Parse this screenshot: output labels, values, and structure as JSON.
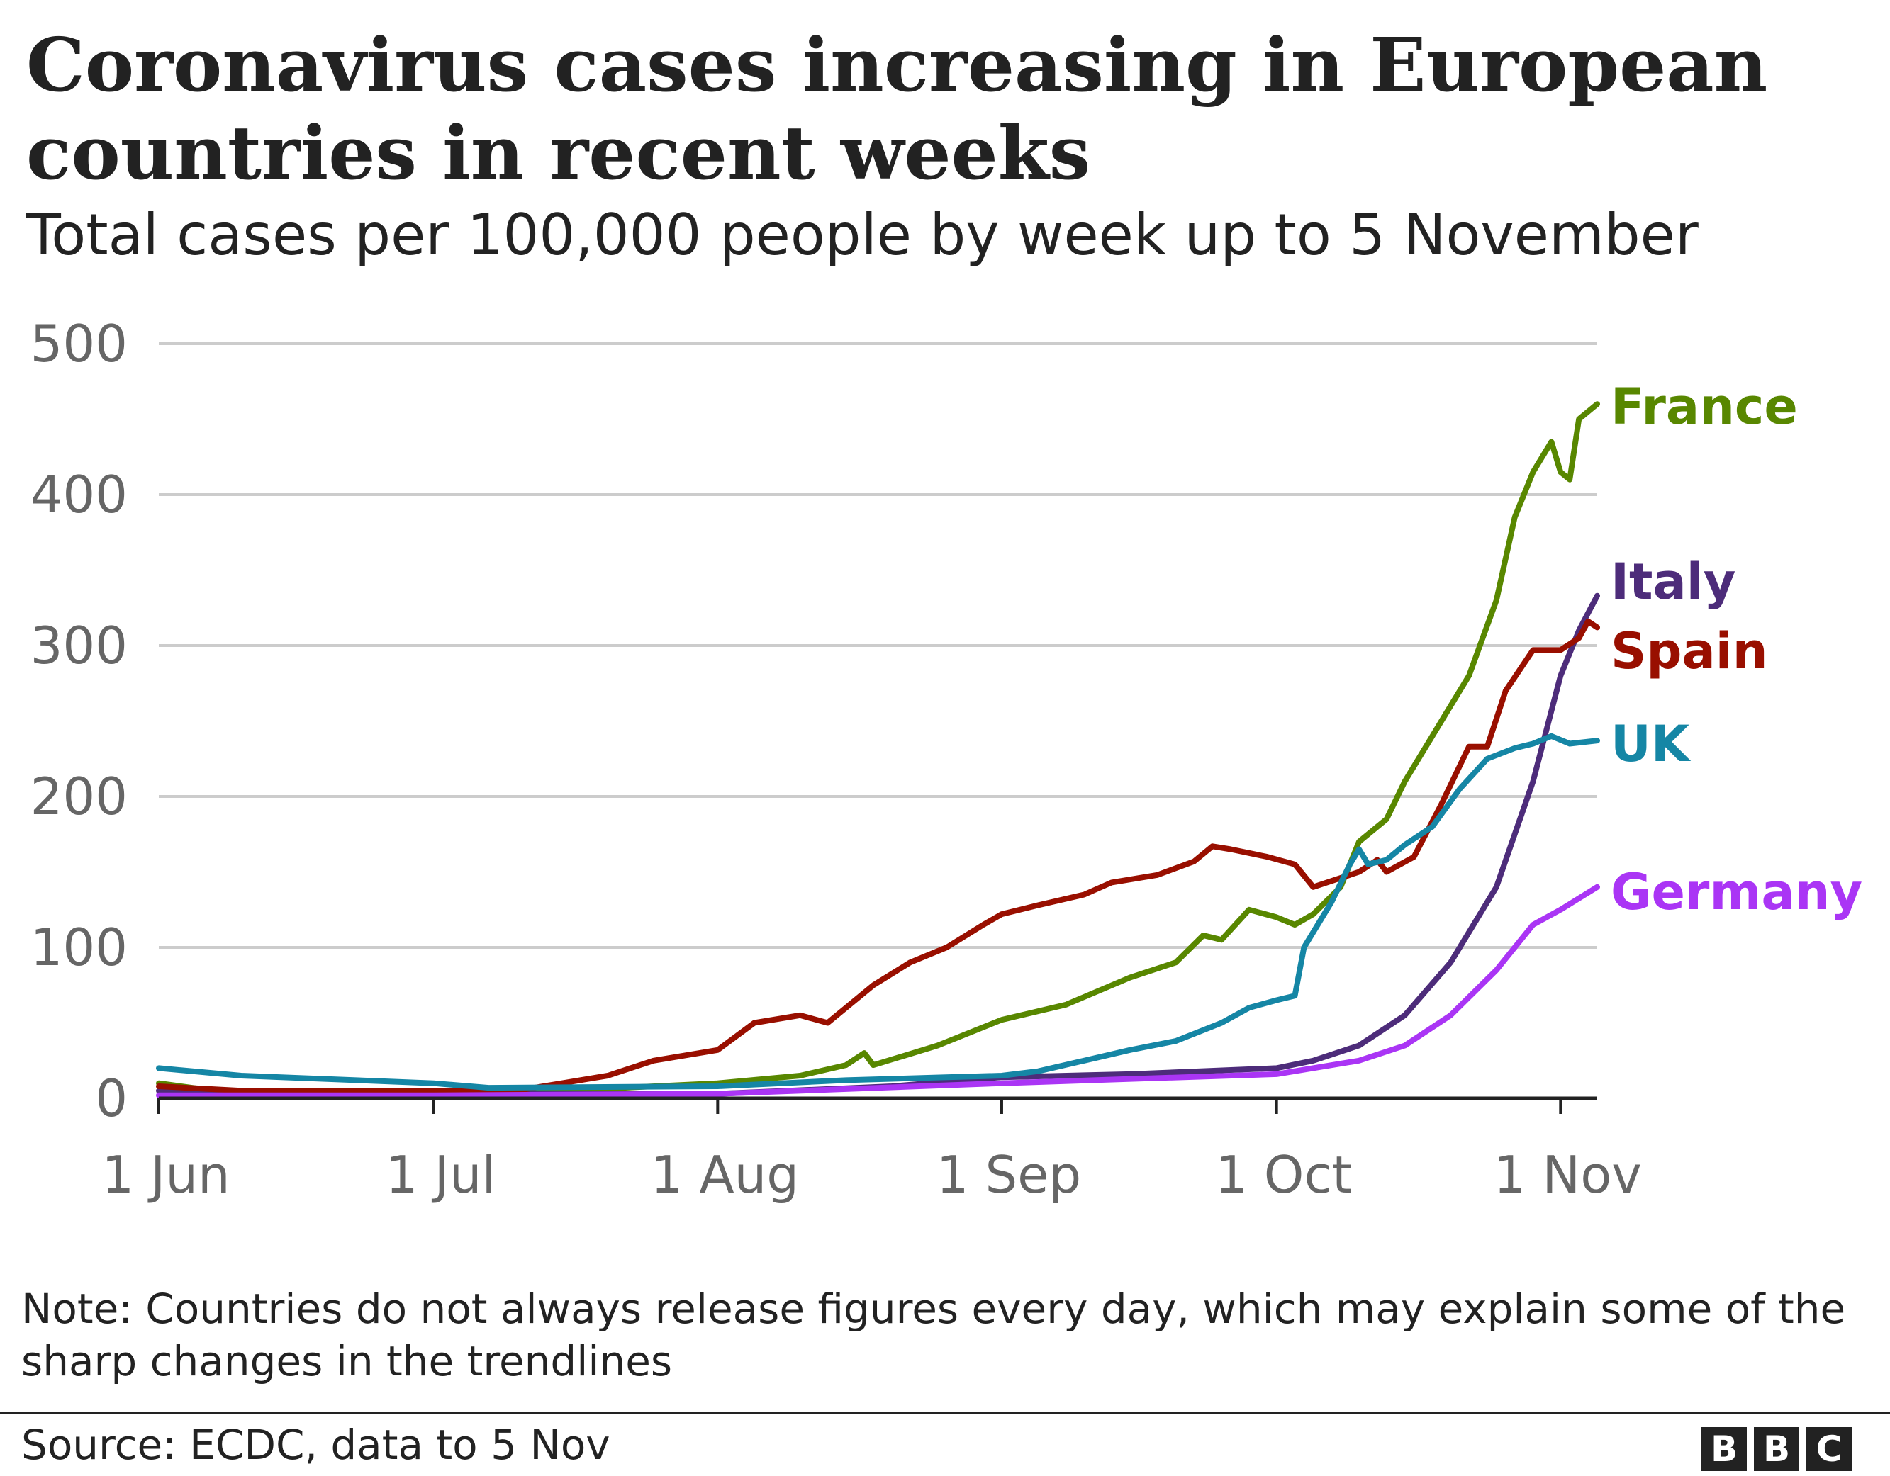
{
  "chart_data": {
    "type": "line",
    "title": "Coronavirus cases increasing in European countries in recent weeks",
    "subtitle": "Total cases per 100,000 people by week up to 5 November",
    "xlabel": "",
    "ylabel": "",
    "ylim": [
      0,
      500
    ],
    "yticks": [
      "0",
      "100",
      "200",
      "300",
      "400",
      "500"
    ],
    "xticks": [
      {
        "label": "1 Jun",
        "date": "06-01"
      },
      {
        "label": "1 Jul",
        "date": "07-01"
      },
      {
        "label": "1 Aug",
        "date": "08-01"
      },
      {
        "label": "1 Sep",
        "date": "09-01"
      },
      {
        "label": "1 Oct",
        "date": "10-01"
      },
      {
        "label": "1 Nov",
        "date": "11-01"
      }
    ],
    "xrange": [
      "06-01",
      "11-05"
    ],
    "grid": true,
    "legend": "direct labels at line ends",
    "series": [
      {
        "name": "France",
        "color": "#588700",
        "points": [
          [
            "06-01",
            10
          ],
          [
            "06-07",
            5
          ],
          [
            "07-01",
            3
          ],
          [
            "07-15",
            5
          ],
          [
            "08-01",
            10
          ],
          [
            "08-10",
            15
          ],
          [
            "08-15",
            22
          ],
          [
            "08-17",
            30
          ],
          [
            "08-18",
            22
          ],
          [
            "08-25",
            35
          ],
          [
            "09-01",
            52
          ],
          [
            "09-08",
            62
          ],
          [
            "09-15",
            80
          ],
          [
            "09-20",
            90
          ],
          [
            "09-23",
            108
          ],
          [
            "09-25",
            105
          ],
          [
            "09-28",
            125
          ],
          [
            "10-01",
            120
          ],
          [
            "10-03",
            115
          ],
          [
            "10-05",
            122
          ],
          [
            "10-08",
            140
          ],
          [
            "10-10",
            170
          ],
          [
            "10-13",
            185
          ],
          [
            "10-15",
            210
          ],
          [
            "10-18",
            240
          ],
          [
            "10-20",
            260
          ],
          [
            "10-22",
            280
          ],
          [
            "10-25",
            330
          ],
          [
            "10-27",
            385
          ],
          [
            "10-29",
            415
          ],
          [
            "10-31",
            435
          ],
          [
            "11-01",
            415
          ],
          [
            "11-02",
            410
          ],
          [
            "11-03",
            450
          ],
          [
            "11-05",
            460
          ]
        ]
      },
      {
        "name": "Italy",
        "color": "#4d2c7a",
        "points": [
          [
            "06-01",
            5
          ],
          [
            "07-01",
            3
          ],
          [
            "08-01",
            3
          ],
          [
            "08-20",
            8
          ],
          [
            "09-01",
            14
          ],
          [
            "09-15",
            16
          ],
          [
            "10-01",
            20
          ],
          [
            "10-05",
            25
          ],
          [
            "10-10",
            35
          ],
          [
            "10-15",
            55
          ],
          [
            "10-20",
            90
          ],
          [
            "10-25",
            140
          ],
          [
            "10-29",
            210
          ],
          [
            "11-01",
            280
          ],
          [
            "11-03",
            310
          ],
          [
            "11-05",
            333
          ]
        ]
      },
      {
        "name": "Spain",
        "color": "#990f00",
        "points": [
          [
            "06-01",
            8
          ],
          [
            "06-10",
            5
          ],
          [
            "07-01",
            5
          ],
          [
            "07-10",
            5
          ],
          [
            "07-15",
            10
          ],
          [
            "07-20",
            15
          ],
          [
            "07-25",
            25
          ],
          [
            "08-01",
            32
          ],
          [
            "08-05",
            50
          ],
          [
            "08-10",
            55
          ],
          [
            "08-13",
            50
          ],
          [
            "08-15",
            60
          ],
          [
            "08-18",
            75
          ],
          [
            "08-22",
            90
          ],
          [
            "08-26",
            100
          ],
          [
            "08-30",
            115
          ],
          [
            "09-01",
            122
          ],
          [
            "09-05",
            128
          ],
          [
            "09-10",
            135
          ],
          [
            "09-13",
            143
          ],
          [
            "09-18",
            148
          ],
          [
            "09-22",
            157
          ],
          [
            "09-24",
            167
          ],
          [
            "09-26",
            165
          ],
          [
            "09-30",
            160
          ],
          [
            "10-03",
            155
          ],
          [
            "10-05",
            140
          ],
          [
            "10-10",
            150
          ],
          [
            "10-12",
            158
          ],
          [
            "10-13",
            150
          ],
          [
            "10-16",
            160
          ],
          [
            "10-19",
            195
          ],
          [
            "10-22",
            233
          ],
          [
            "10-24",
            233
          ],
          [
            "10-26",
            270
          ],
          [
            "10-29",
            297
          ],
          [
            "11-01",
            297
          ],
          [
            "11-03",
            305
          ],
          [
            "11-04",
            316
          ],
          [
            "11-05",
            312
          ]
        ]
      },
      {
        "name": "UK",
        "color": "#1586a5",
        "points": [
          [
            "06-01",
            20
          ],
          [
            "06-10",
            15
          ],
          [
            "07-01",
            10
          ],
          [
            "07-07",
            7
          ],
          [
            "08-01",
            8
          ],
          [
            "08-15",
            12
          ],
          [
            "09-01",
            15
          ],
          [
            "09-05",
            18
          ],
          [
            "09-10",
            25
          ],
          [
            "09-15",
            32
          ],
          [
            "09-20",
            38
          ],
          [
            "09-25",
            50
          ],
          [
            "09-28",
            60
          ],
          [
            "10-01",
            65
          ],
          [
            "10-03",
            68
          ],
          [
            "10-04",
            100
          ],
          [
            "10-07",
            130
          ],
          [
            "10-09",
            155
          ],
          [
            "10-10",
            165
          ],
          [
            "10-11",
            155
          ],
          [
            "10-13",
            158
          ],
          [
            "10-15",
            168
          ],
          [
            "10-18",
            180
          ],
          [
            "10-21",
            205
          ],
          [
            "10-24",
            225
          ],
          [
            "10-27",
            232
          ],
          [
            "10-29",
            235
          ],
          [
            "10-31",
            240
          ],
          [
            "11-02",
            235
          ],
          [
            "11-05",
            237
          ]
        ]
      },
      {
        "name": "Germany",
        "color": "#aa35f5",
        "points": [
          [
            "06-01",
            2
          ],
          [
            "07-01",
            2
          ],
          [
            "08-01",
            3
          ],
          [
            "09-01",
            10
          ],
          [
            "10-01",
            16
          ],
          [
            "10-10",
            25
          ],
          [
            "10-15",
            35
          ],
          [
            "10-20",
            55
          ],
          [
            "10-25",
            85
          ],
          [
            "10-29",
            115
          ],
          [
            "11-01",
            125
          ],
          [
            "11-05",
            140
          ]
        ]
      }
    ]
  },
  "note": "Note: Countries do not always release figures every day, which may explain some of the sharp changes in the trendlines",
  "source": "Source: ECDC, data to 5 Nov",
  "logo": "BBC",
  "colors": {
    "gridline": "#cccccc",
    "axis": "#222222",
    "ticklabel": "#666666",
    "text": "#222222"
  }
}
